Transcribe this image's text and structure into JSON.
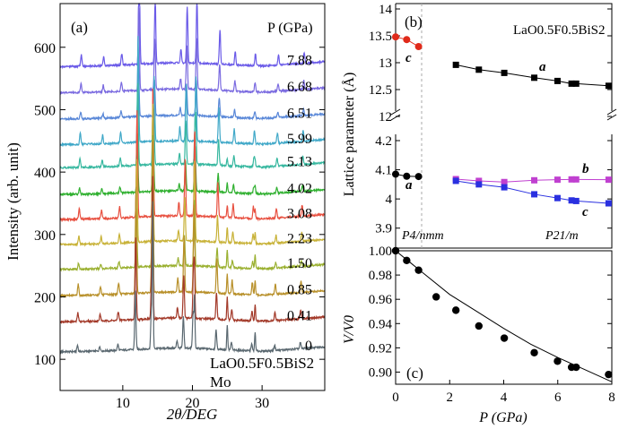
{
  "chart_data": [
    {
      "panel": "(a)",
      "type": "line",
      "xlabel": "2θ/DEG",
      "ylabel": "Intensity (arb. unit)",
      "xlim": [
        1,
        39
      ],
      "ylim": [
        50,
        670
      ],
      "xticks": [
        10,
        20,
        30
      ],
      "yticks": [
        100,
        200,
        300,
        400,
        500,
        600
      ],
      "legend_title": "P (GPa)",
      "sample_label": "LaO0.5F0.5BiS2",
      "sample_label2": "Mo",
      "pressures": [
        "0",
        "0.41",
        "0.85",
        "1.50",
        "2.23",
        "3.08",
        "4.02",
        "5.13",
        "5.99",
        "6.51",
        "6.68",
        "7.88"
      ],
      "baselines": [
        100,
        148,
        190,
        232,
        272,
        312,
        352,
        395,
        432,
        473,
        515,
        557
      ],
      "colors": [
        "#5a6870",
        "#a33a2a",
        "#b8902a",
        "#9ab030",
        "#c8b238",
        "#e85040",
        "#30b030",
        "#38b8a0",
        "#40a8c8",
        "#5a88d8",
        "#7a6ae0",
        "#6a5ae8"
      ],
      "peaks": [
        {
          "x": 3.5,
          "h": 18
        },
        {
          "x": 6.7,
          "h": 14
        },
        {
          "x": 9.3,
          "h": 18
        },
        {
          "x": 11.8,
          "h": 170
        },
        {
          "x": 14.1,
          "h": 105
        },
        {
          "x": 17.8,
          "h": 22
        },
        {
          "x": 18.7,
          "h": 90
        },
        {
          "x": 20.1,
          "h": 105
        },
        {
          "x": 23.4,
          "h": 55
        },
        {
          "x": 25.6,
          "h": 22
        },
        {
          "x": 28.5,
          "h": 20
        },
        {
          "x": 31.8,
          "h": 16
        },
        {
          "x": 35.5,
          "h": 18
        }
      ],
      "mo_peaks": [
        {
          "x": 14.3,
          "h": 230
        },
        {
          "x": 20.3,
          "h": 80
        },
        {
          "x": 25.0,
          "h": 40
        },
        {
          "x": 29.0,
          "h": 30
        }
      ]
    },
    {
      "panel": "(b)",
      "type": "scatter",
      "title": "LaO0.5F0.5BiS2",
      "ylabel": "Lattice parameter (Å)",
      "xlim": [
        0,
        8
      ],
      "ylim_top": [
        12,
        14
      ],
      "yticks_top": [
        "12",
        "12.5",
        "13",
        "13.5",
        "14"
      ],
      "ylim_bottom": [
        3.8,
        4.2
      ],
      "yticks_bottom": [
        "3.9",
        "4",
        "4.1",
        "4.2"
      ],
      "phase_labels": [
        "P4/nmm",
        "P21/m"
      ],
      "series": [
        {
          "name": "c",
          "phase": "P4/nmm",
          "color": "#e02a1a",
          "x": [
            0,
            0.41,
            0.85
          ],
          "y": [
            13.48,
            13.43,
            13.3
          ]
        },
        {
          "name": "a",
          "phase": "P21/m",
          "color": "#000000",
          "x": [
            2.23,
            3.08,
            4.02,
            5.13,
            5.99,
            6.51,
            6.68,
            7.88
          ],
          "y": [
            12.96,
            12.87,
            12.81,
            12.72,
            12.66,
            12.61,
            12.61,
            12.57
          ]
        },
        {
          "name": "a",
          "phase": "P4/nmm",
          "color": "#000000",
          "x": [
            0,
            0.41,
            0.85
          ],
          "y": [
            4.085,
            4.078,
            4.077
          ]
        },
        {
          "name": "b",
          "phase": "P21/m",
          "color": "#c040d0",
          "x": [
            2.23,
            3.08,
            4.02,
            5.13,
            5.99,
            6.51,
            6.68,
            7.88
          ],
          "y": [
            4.068,
            4.062,
            4.058,
            4.064,
            4.066,
            4.067,
            4.067,
            4.066
          ]
        },
        {
          "name": "c",
          "phase": "P21/m",
          "color": "#2a30e0",
          "x": [
            2.23,
            3.08,
            4.02,
            5.13,
            5.99,
            6.51,
            6.68,
            7.88
          ],
          "y": [
            4.062,
            4.05,
            4.04,
            4.016,
            4.003,
            3.995,
            3.993,
            3.985
          ]
        }
      ]
    },
    {
      "panel": "(c)",
      "type": "scatter",
      "xlabel": "P (GPa)",
      "ylabel": "V/V0",
      "xlim": [
        0,
        8
      ],
      "ylim": [
        0.89,
        1.0
      ],
      "xticks": [
        0,
        2,
        4,
        6,
        8
      ],
      "yticks": [
        "0.90",
        "0.92",
        "0.94",
        "0.96",
        "0.98",
        "1.00"
      ],
      "x": [
        0,
        0.41,
        0.85,
        1.5,
        2.23,
        3.08,
        4.02,
        5.13,
        5.99,
        6.51,
        6.68,
        7.88
      ],
      "y": [
        1.0,
        0.992,
        0.984,
        0.962,
        0.951,
        0.938,
        0.928,
        0.916,
        0.909,
        0.904,
        0.904,
        0.898
      ],
      "fit": {
        "x": [
          0,
          0.5,
          1,
          2,
          3,
          4,
          5,
          6,
          7,
          8
        ],
        "y": [
          1.0,
          0.991,
          0.982,
          0.964,
          0.95,
          0.936,
          0.923,
          0.912,
          0.902,
          0.892
        ]
      }
    }
  ]
}
